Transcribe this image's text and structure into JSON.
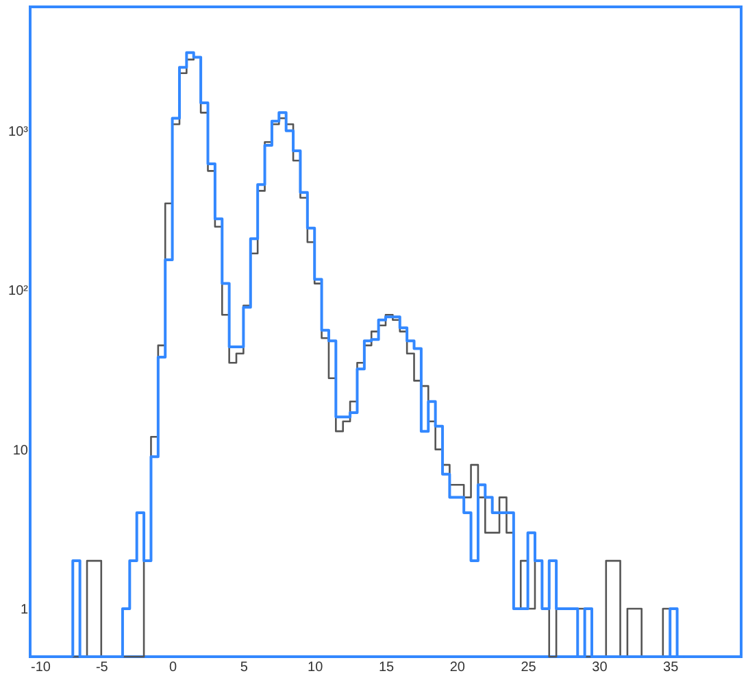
{
  "chart_data": {
    "type": "histogram",
    "log": "y",
    "xlim": [
      -10,
      40
    ],
    "xticks": [
      -10,
      -5,
      0,
      5,
      10,
      15,
      20,
      25,
      30,
      35
    ],
    "ylim": [
      0.5,
      6000
    ],
    "yticks": [
      1,
      10,
      {
        "value": 100,
        "label": "10²"
      },
      {
        "value": 1000,
        "label": "10³"
      }
    ],
    "grid": false,
    "bins": [
      -7,
      -6.5,
      -6,
      -5.5,
      -5,
      -4.5,
      -4,
      -3.5,
      -3,
      -2.5,
      -2,
      -1.5,
      -1,
      -0.5,
      0,
      0.5,
      1,
      1.5,
      2,
      2.5,
      3,
      3.5,
      4,
      4.5,
      5,
      5.5,
      6,
      6.5,
      7,
      7.5,
      8,
      8.5,
      9,
      9.5,
      10,
      10.5,
      11,
      11.5,
      12,
      12.5,
      13,
      13.5,
      14,
      14.5,
      15,
      15.5,
      16,
      16.5,
      17,
      17.5,
      18,
      18.5,
      19,
      19.5,
      20,
      20.5,
      21,
      21.5,
      22,
      22.5,
      23,
      23.5,
      24,
      24.5,
      25,
      25.5,
      26,
      26.5,
      27,
      27.5,
      28,
      28.5,
      29,
      29.5,
      30,
      30.5,
      31,
      31.5,
      32,
      32.5,
      33,
      33.5,
      34,
      34.5,
      35,
      35.5,
      36
    ],
    "series": [
      {
        "color": "#555555",
        "values": [
          null,
          null,
          2,
          2,
          null,
          null,
          null,
          null,
          null,
          null,
          2,
          12,
          45,
          350,
          1100,
          2300,
          2800,
          2900,
          1300,
          560,
          250,
          70,
          35,
          40,
          80,
          170,
          420,
          850,
          1100,
          1200,
          1100,
          650,
          380,
          200,
          110,
          50,
          28,
          13,
          15,
          20,
          35,
          45,
          55,
          60,
          70,
          65,
          55,
          40,
          27,
          25,
          15,
          10,
          8,
          6,
          6,
          5,
          8,
          5,
          3,
          3,
          5,
          3,
          1,
          2,
          1,
          2,
          1,
          null,
          1,
          1,
          1,
          1,
          null,
          null,
          null,
          2,
          2,
          null,
          1,
          1,
          null,
          null,
          null,
          1,
          1,
          null
        ]
      },
      {
        "color": "#3388ff",
        "values": [
          2,
          null,
          null,
          null,
          null,
          null,
          null,
          1,
          2,
          4,
          2,
          9,
          38,
          155,
          1200,
          2500,
          3100,
          2900,
          1500,
          620,
          280,
          110,
          44,
          44,
          78,
          210,
          460,
          810,
          1150,
          1300,
          1000,
          750,
          410,
          245,
          117,
          56,
          48,
          16,
          16,
          17,
          32,
          48,
          49,
          65,
          68,
          68,
          58,
          48,
          43,
          13,
          20,
          14,
          7,
          5,
          5,
          4,
          2,
          6,
          5,
          4,
          4,
          4,
          1,
          1,
          3,
          2,
          1,
          2,
          1,
          1,
          1,
          null,
          1,
          null,
          null,
          null,
          null,
          null,
          null,
          null,
          null,
          null,
          null,
          null,
          1,
          null
        ]
      }
    ]
  }
}
